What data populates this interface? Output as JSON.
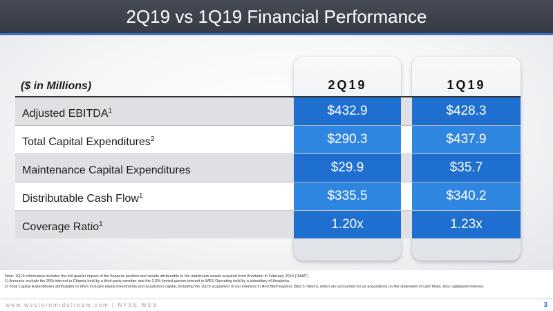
{
  "slide": {
    "title": "2Q19 vs 1Q19 Financial Performance",
    "page_number": "3",
    "footer": "www.westernmidstream.com  |  NYSE  WES"
  },
  "table": {
    "units_label": "($ in Millions)",
    "columns": [
      "2Q19",
      "1Q19"
    ],
    "rows": [
      {
        "label": "Adjusted EBITDA",
        "sup": "1",
        "values": [
          "$432.9",
          "$428.3"
        ]
      },
      {
        "label": "Total Capital Expenditures",
        "sup": "2",
        "values": [
          "$290.3",
          "$437.9"
        ]
      },
      {
        "label": "Maintenance Capital Expenditures",
        "sup": "",
        "values": [
          "$29.9",
          "$35.7"
        ]
      },
      {
        "label": "Distributable Cash Flow",
        "sup": "1",
        "values": [
          "$335.5",
          "$340.2"
        ]
      },
      {
        "label": "Coverage Ratio",
        "sup": "1",
        "values": [
          "1.20x",
          "1.23x"
        ]
      }
    ]
  },
  "notes": [
    "Note: 1Q19 information includes the full-quarter impact of the financial position and results attributable to the midstream assets acquired from Anadarko in February 2019 (\"AMA\").",
    "1)      Amounts exclude the 25% interest in Chipeta held by a third-party member and the 2.0% limited partner interest in WES Operating held by a subsidiary of Anadarko.",
    "2)      Total Capital Expenditures attributable to WES includes equity investments and acquisition capital, including the 1Q19 acquisition of our interests in Red Bluff Express ($92.5 million), which are accounted for as acquisitions on the statement of cash flows, less capitalized interest."
  ]
}
